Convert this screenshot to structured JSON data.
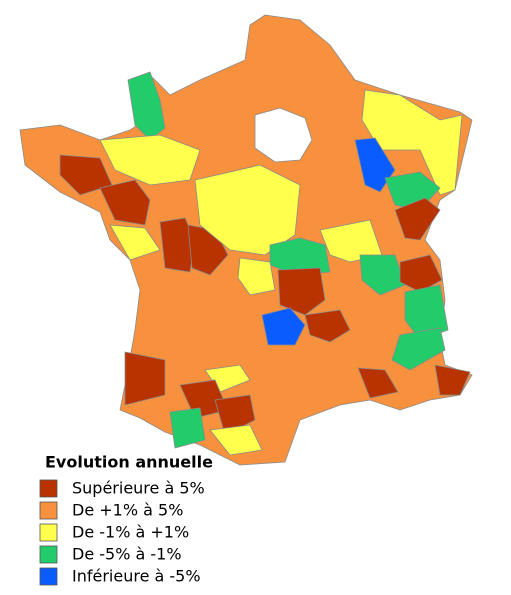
{
  "legend": {
    "title": "Evolution annuelle",
    "items": [
      {
        "label": "Supérieure à 5%",
        "color": "#b83300"
      },
      {
        "label": "De +1% à 5%",
        "color": "#f7913d"
      },
      {
        "label": "De -1% à +1%",
        "color": "#ffff4d"
      },
      {
        "label": "De -5% à -1%",
        "color": "#22cc6a"
      },
      {
        "label": "Inférieure à -5%",
        "color": "#0a5cff"
      }
    ]
  }
}
